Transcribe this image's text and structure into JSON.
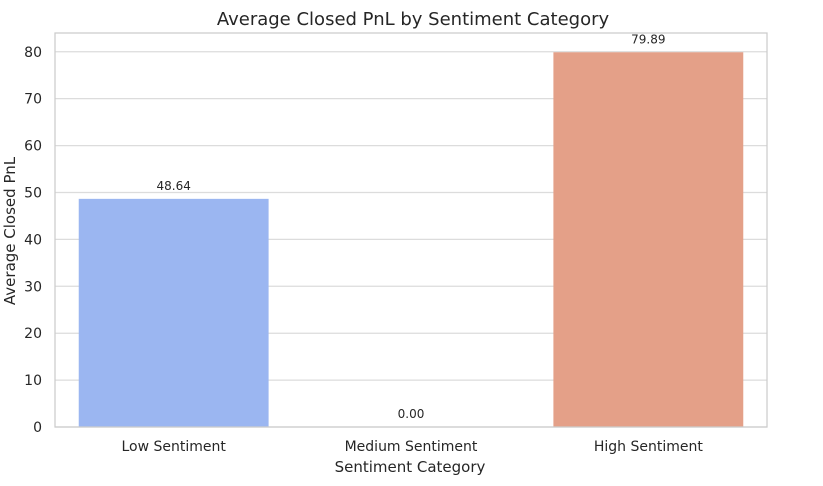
{
  "chart_data": {
    "type": "bar",
    "title": "Average Closed PnL by Sentiment Category",
    "xlabel": "Sentiment Category",
    "ylabel": "Average Closed PnL",
    "categories": [
      "Low Sentiment",
      "Medium Sentiment",
      "High Sentiment"
    ],
    "values": [
      48.64,
      0.0,
      79.89
    ],
    "value_labels": [
      "48.64",
      "0.00",
      "79.89"
    ],
    "colors": [
      "#9bb6f1",
      "#dcdcdc",
      "#e4a088"
    ],
    "ylim": [
      0,
      84
    ],
    "yticks": [
      0,
      10,
      20,
      30,
      40,
      50,
      60,
      70,
      80
    ],
    "grid": true,
    "legend": "none"
  }
}
